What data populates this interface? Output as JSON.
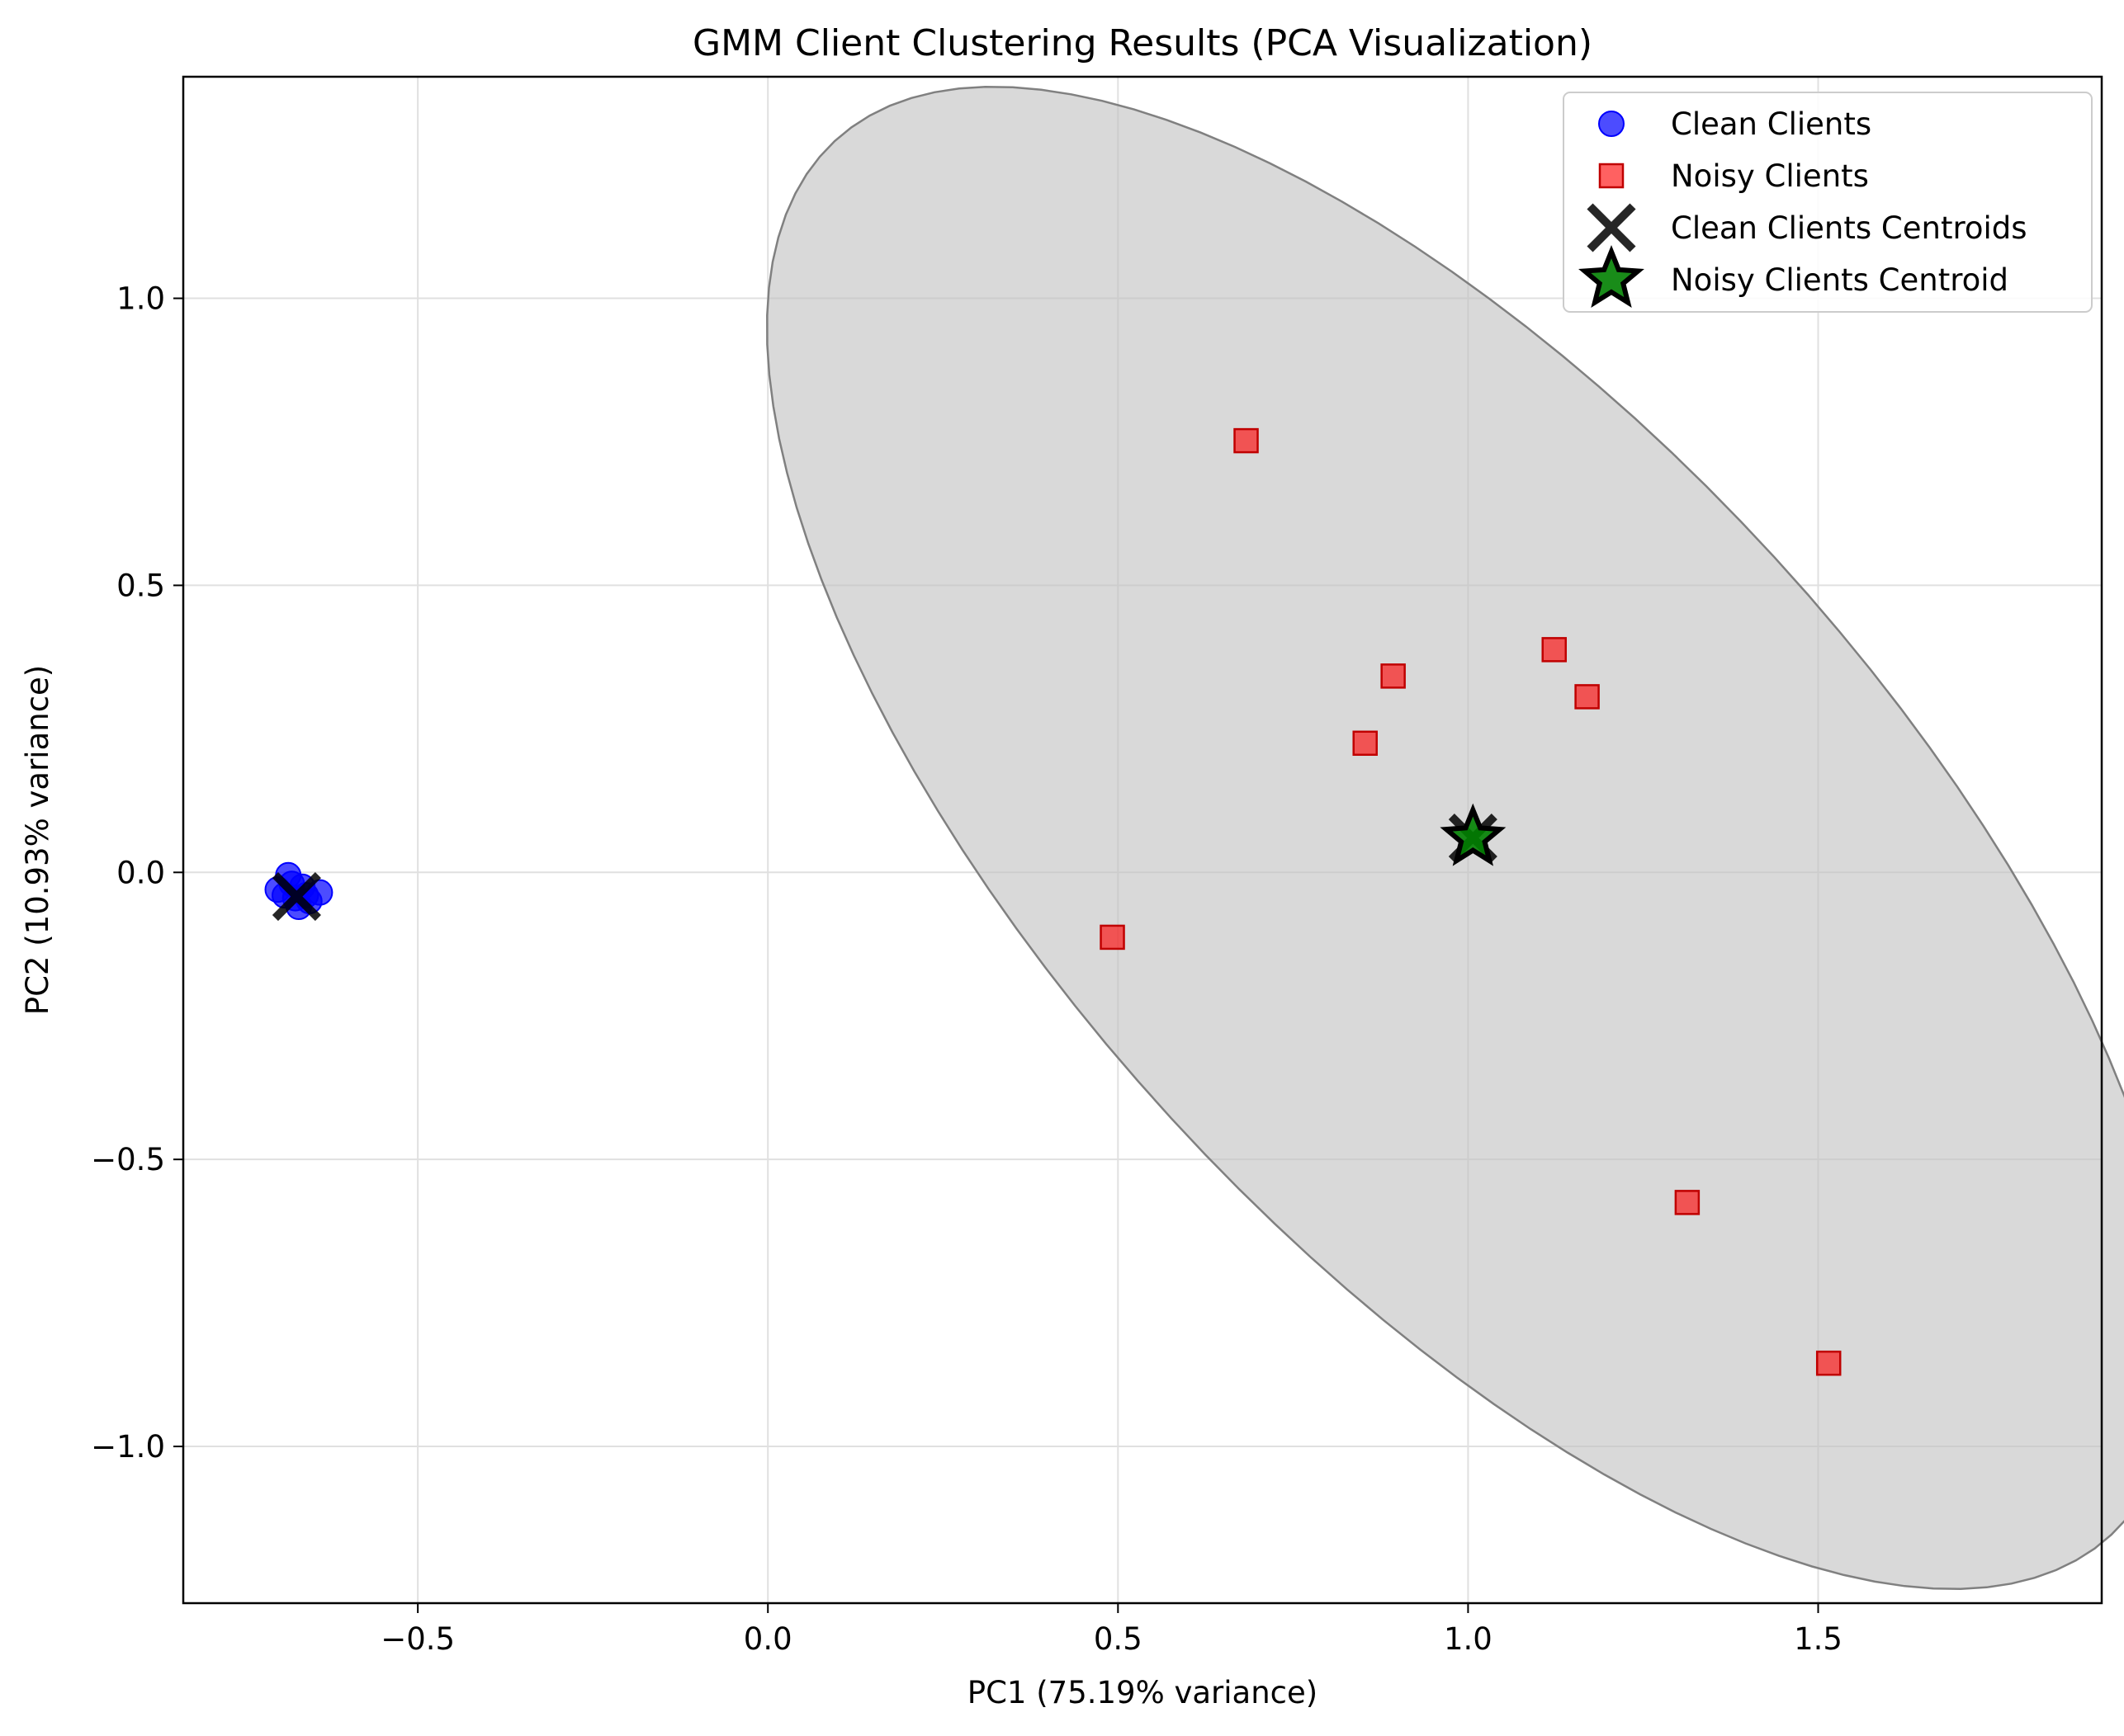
{
  "colors": {
    "clean": "#0000ff",
    "noisy": "#ff0000",
    "noisy_edge": "#c00000",
    "centroid_clean": "#000000",
    "centroid_noisy_fill": "#008000",
    "ellipse_fill": "#bfbfbf",
    "ellipse_edge": "#808080",
    "grid": "#e0e0e0"
  },
  "chart_data": {
    "type": "scatter",
    "title": "GMM Client Clustering Results (PCA Visualization)",
    "xlabel": "PC1 (75.19% variance)",
    "ylabel": "PC2 (10.93% variance)",
    "xlim": [
      -0.835,
      1.905
    ],
    "ylim": [
      -1.273,
      1.386
    ],
    "xticks": [
      {
        "value": -0.5,
        "label": "−0.5"
      },
      {
        "value": 0.0,
        "label": "0.0"
      },
      {
        "value": 0.5,
        "label": "0.5"
      },
      {
        "value": 1.0,
        "label": "1.0"
      },
      {
        "value": 1.5,
        "label": "1.5"
      }
    ],
    "yticks": [
      {
        "value": 1.0,
        "label": "1.0"
      },
      {
        "value": 0.5,
        "label": "0.5"
      },
      {
        "value": 0.0,
        "label": "0.0"
      },
      {
        "value": -0.5,
        "label": "−0.5"
      },
      {
        "value": -1.0,
        "label": "−1.0"
      }
    ],
    "grid": true,
    "legend_position": "top-right",
    "legend": [
      {
        "label": "Clean Clients",
        "marker": "circle"
      },
      {
        "label": "Noisy Clients",
        "marker": "square"
      },
      {
        "label": "Clean Clients Centroids",
        "marker": "x"
      },
      {
        "label": "Noisy Clients Centroid",
        "marker": "star"
      }
    ],
    "series": [
      {
        "name": "Clean Clients",
        "marker": "circle",
        "points": [
          [
            -0.7,
            -0.03
          ],
          [
            -0.685,
            -0.005
          ],
          [
            -0.675,
            -0.045
          ],
          [
            -0.665,
            -0.025
          ],
          [
            -0.67,
            -0.06
          ],
          [
            -0.655,
            -0.05
          ],
          [
            -0.64,
            -0.035
          ],
          [
            -0.69,
            -0.04
          ],
          [
            -0.68,
            -0.02
          ],
          [
            -0.66,
            -0.04
          ]
        ]
      },
      {
        "name": "Noisy Clients",
        "marker": "square",
        "points": [
          [
            0.683,
            0.752
          ],
          [
            0.893,
            0.342
          ],
          [
            0.853,
            0.225
          ],
          [
            1.123,
            0.388
          ],
          [
            1.17,
            0.306
          ],
          [
            0.492,
            -0.113
          ],
          [
            1.313,
            -0.575
          ],
          [
            1.515,
            -0.855
          ]
        ]
      },
      {
        "name": "Clean Clients Centroids",
        "marker": "x",
        "points": [
          [
            -0.673,
            -0.042
          ],
          [
            1.007,
            0.06
          ]
        ]
      },
      {
        "name": "Noisy Clients Centroid",
        "marker": "star",
        "points": [
          [
            1.007,
            0.06
          ]
        ]
      }
    ],
    "ellipse": {
      "center": [
        1.007,
        0.06
      ],
      "width": 3.05,
      "height": 1.27,
      "angle_deg": -55.6
    }
  }
}
